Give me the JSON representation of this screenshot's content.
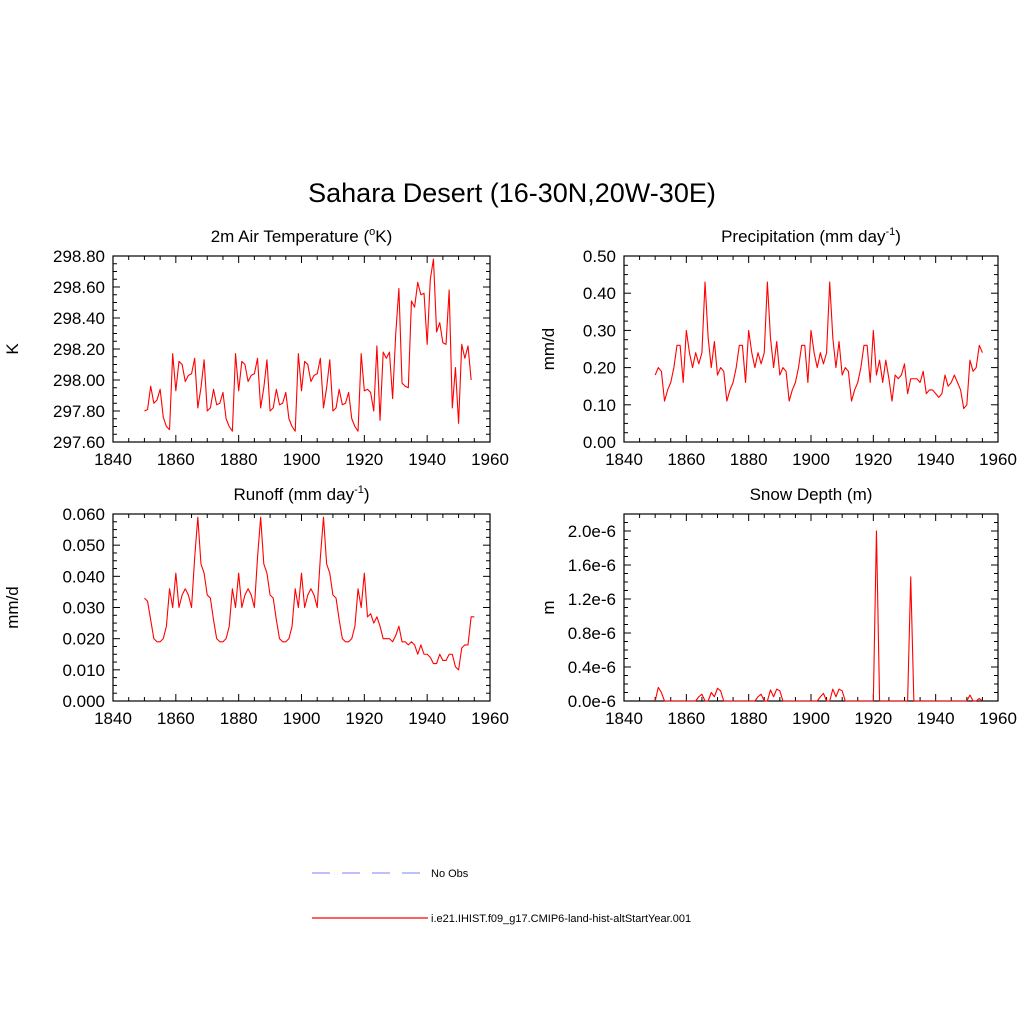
{
  "figure": {
    "title": "Sahara Desert (16-30N,20W-30E)"
  },
  "legend": {
    "items": [
      {
        "label": "No Obs",
        "color": "#9999ff",
        "dashed": true
      },
      {
        "label": "i.e21.IHIST.f09_g17.CMIP6-land-hist-altStartYear.001",
        "color": "#ff0000",
        "dashed": false
      }
    ]
  },
  "chart_data": [
    {
      "type": "line",
      "title": "2m Air Temperature (",
      "title_sup": "o",
      "title_tail": "K)",
      "ylabel": "K",
      "xlim": [
        1840,
        1960
      ],
      "xticks": [
        "1840",
        "1860",
        "1880",
        "1900",
        "1920",
        "1940",
        "1960"
      ],
      "ylim": [
        297.6,
        298.8
      ],
      "yticks": [
        "297.60",
        "297.80",
        "298.00",
        "298.20",
        "298.40",
        "298.60",
        "298.80"
      ],
      "x_start": 1850,
      "series": [
        {
          "color": "#ff0000",
          "values": [
            297.8,
            297.81,
            297.96,
            297.85,
            297.87,
            297.94,
            297.76,
            297.7,
            297.68,
            298.17,
            297.93,
            298.12,
            298.1,
            297.99,
            298.03,
            298.04,
            298.14,
            297.82,
            297.95,
            298.13,
            297.8,
            297.82,
            297.94,
            297.84,
            297.85,
            297.92,
            297.75,
            297.7,
            297.67,
            298.17,
            297.93,
            298.12,
            298.1,
            297.99,
            298.03,
            298.04,
            298.14,
            297.82,
            297.95,
            298.13,
            297.8,
            297.82,
            297.94,
            297.84,
            297.85,
            297.92,
            297.75,
            297.7,
            297.67,
            298.17,
            297.93,
            298.12,
            298.1,
            297.99,
            298.03,
            298.04,
            298.14,
            297.82,
            297.95,
            298.13,
            297.8,
            297.82,
            297.94,
            297.84,
            297.85,
            297.92,
            297.75,
            297.7,
            297.67,
            298.17,
            297.93,
            297.94,
            297.92,
            297.8,
            298.22,
            297.74,
            298.18,
            298.14,
            298.18,
            297.88,
            298.3,
            298.59,
            297.98,
            297.96,
            297.95,
            298.51,
            298.47,
            298.63,
            298.55,
            298.56,
            298.23,
            298.65,
            298.78,
            298.31,
            298.37,
            298.24,
            298.23,
            298.58,
            297.82,
            298.08,
            297.72,
            298.23,
            298.14,
            298.22,
            298.0
          ]
        }
      ]
    },
    {
      "type": "line",
      "title": "Precipitation (mm day",
      "title_sup": "-1",
      "title_tail": ")",
      "ylabel": "mm/d",
      "xlim": [
        1840,
        1960
      ],
      "xticks": [
        "1840",
        "1860",
        "1880",
        "1900",
        "1920",
        "1940",
        "1960"
      ],
      "ylim": [
        0.0,
        0.5
      ],
      "yticks": [
        "0.00",
        "0.10",
        "0.20",
        "0.30",
        "0.40",
        "0.50"
      ],
      "x_start": 1850,
      "series": [
        {
          "color": "#ff0000",
          "values": [
            0.18,
            0.2,
            0.19,
            0.11,
            0.14,
            0.16,
            0.2,
            0.26,
            0.26,
            0.16,
            0.3,
            0.24,
            0.2,
            0.24,
            0.21,
            0.24,
            0.43,
            0.28,
            0.2,
            0.27,
            0.18,
            0.2,
            0.19,
            0.11,
            0.14,
            0.16,
            0.2,
            0.26,
            0.26,
            0.16,
            0.3,
            0.24,
            0.2,
            0.24,
            0.21,
            0.24,
            0.43,
            0.28,
            0.2,
            0.27,
            0.18,
            0.2,
            0.19,
            0.11,
            0.14,
            0.16,
            0.2,
            0.26,
            0.26,
            0.16,
            0.3,
            0.24,
            0.2,
            0.24,
            0.21,
            0.24,
            0.43,
            0.28,
            0.2,
            0.27,
            0.18,
            0.2,
            0.19,
            0.11,
            0.14,
            0.16,
            0.2,
            0.26,
            0.26,
            0.16,
            0.3,
            0.18,
            0.22,
            0.16,
            0.22,
            0.17,
            0.11,
            0.18,
            0.17,
            0.18,
            0.21,
            0.13,
            0.17,
            0.17,
            0.17,
            0.16,
            0.19,
            0.13,
            0.14,
            0.14,
            0.13,
            0.12,
            0.13,
            0.18,
            0.15,
            0.16,
            0.18,
            0.16,
            0.14,
            0.09,
            0.1,
            0.22,
            0.19,
            0.2,
            0.26,
            0.24
          ]
        }
      ]
    },
    {
      "type": "line",
      "title": "Runoff (mm day",
      "title_sup": "-1",
      "title_tail": ")",
      "ylabel": "mm/d",
      "xlim": [
        1840,
        1960
      ],
      "xticks": [
        "1840",
        "1860",
        "1880",
        "1900",
        "1920",
        "1940",
        "1960"
      ],
      "ylim": [
        0.0,
        0.06
      ],
      "yticks": [
        "0.000",
        "0.010",
        "0.020",
        "0.030",
        "0.040",
        "0.050",
        "0.060"
      ],
      "x_start": 1850,
      "series": [
        {
          "color": "#ff0000",
          "values": [
            0.033,
            0.032,
            0.026,
            0.02,
            0.019,
            0.019,
            0.02,
            0.024,
            0.036,
            0.03,
            0.041,
            0.03,
            0.034,
            0.036,
            0.034,
            0.03,
            0.046,
            0.059,
            0.044,
            0.041,
            0.034,
            0.033,
            0.026,
            0.02,
            0.019,
            0.019,
            0.02,
            0.024,
            0.036,
            0.03,
            0.041,
            0.03,
            0.034,
            0.036,
            0.034,
            0.03,
            0.046,
            0.059,
            0.044,
            0.041,
            0.034,
            0.033,
            0.026,
            0.02,
            0.019,
            0.019,
            0.02,
            0.024,
            0.036,
            0.03,
            0.041,
            0.03,
            0.034,
            0.036,
            0.034,
            0.03,
            0.046,
            0.059,
            0.044,
            0.041,
            0.034,
            0.033,
            0.026,
            0.02,
            0.019,
            0.019,
            0.02,
            0.024,
            0.036,
            0.03,
            0.041,
            0.027,
            0.028,
            0.025,
            0.027,
            0.024,
            0.02,
            0.02,
            0.02,
            0.019,
            0.021,
            0.024,
            0.019,
            0.019,
            0.018,
            0.019,
            0.018,
            0.015,
            0.018,
            0.015,
            0.015,
            0.014,
            0.012,
            0.012,
            0.015,
            0.013,
            0.013,
            0.015,
            0.015,
            0.011,
            0.01,
            0.017,
            0.018,
            0.018,
            0.027,
            0.027
          ]
        }
      ]
    },
    {
      "type": "line",
      "title": "Snow Depth (m)",
      "title_sup": "",
      "title_tail": "",
      "ylabel": "m",
      "xlim": [
        1840,
        1960
      ],
      "xticks": [
        "1840",
        "1860",
        "1880",
        "1900",
        "1920",
        "1940",
        "1960"
      ],
      "ylim": [
        0.0,
        2.2e-06
      ],
      "yticks": [
        "0.0e-6",
        "0.4e-6",
        "0.8e-6",
        "1.2e-6",
        "1.6e-6",
        "2.0e-6"
      ],
      "ytick_values": [
        0.0,
        4e-07,
        8e-07,
        1.2e-06,
        1.6e-06,
        2e-06
      ],
      "x_start": 1850,
      "series": [
        {
          "color": "#ff0000",
          "values": [
            0.0,
            1.6e-07,
            1e-07,
            0.0,
            0.0,
            0.0,
            0.0,
            0.0,
            0.0,
            0.0,
            0.0,
            0.0,
            0.0,
            0.0,
            5e-08,
            8e-08,
            0.0,
            0.0,
            1e-07,
            5e-08,
            1.5e-07,
            1.2e-07,
            0.0,
            0.0,
            0.0,
            0.0,
            0.0,
            0.0,
            0.0,
            0.0,
            0.0,
            0.0,
            0.0,
            5e-08,
            8e-08,
            0.0,
            0.0,
            1.3e-07,
            5e-08,
            1.4e-07,
            1.2e-07,
            0.0,
            0.0,
            0.0,
            0.0,
            0.0,
            0.0,
            0.0,
            0.0,
            0.0,
            0.0,
            0.0,
            0.0,
            5e-08,
            9e-08,
            0.0,
            0.0,
            1.4e-07,
            5e-08,
            1.4e-07,
            1.2e-07,
            0.0,
            0.0,
            0.0,
            0.0,
            0.0,
            0.0,
            0.0,
            0.0,
            0.0,
            0.0,
            2e-06,
            0.0,
            0.0,
            0.0,
            0.0,
            0.0,
            0.0,
            0.0,
            0.0,
            0.0,
            0.0,
            1.46e-06,
            0.0,
            0.0,
            0.0,
            0.0,
            0.0,
            0.0,
            0.0,
            0.0,
            0.0,
            0.0,
            0.0,
            0.0,
            0.0,
            0.0,
            0.0,
            0.0,
            0.0,
            0.0,
            7e-08,
            0.0,
            0.0,
            3e-08,
            0.0
          ]
        }
      ]
    }
  ]
}
